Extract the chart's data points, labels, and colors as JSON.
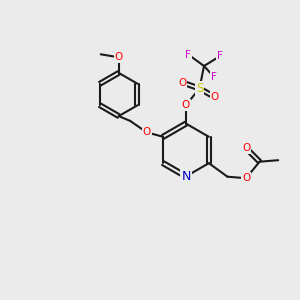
{
  "bg_color": "#ebebeb",
  "bond_color": "#1a1a1a",
  "bond_width": 1.5,
  "atom_colors": {
    "O": "#ff0000",
    "N": "#0000cc",
    "S": "#cccc00",
    "F": "#cc00cc",
    "C": "#1a1a1a"
  },
  "font_size": 7.5,
  "dbo": 0.055
}
